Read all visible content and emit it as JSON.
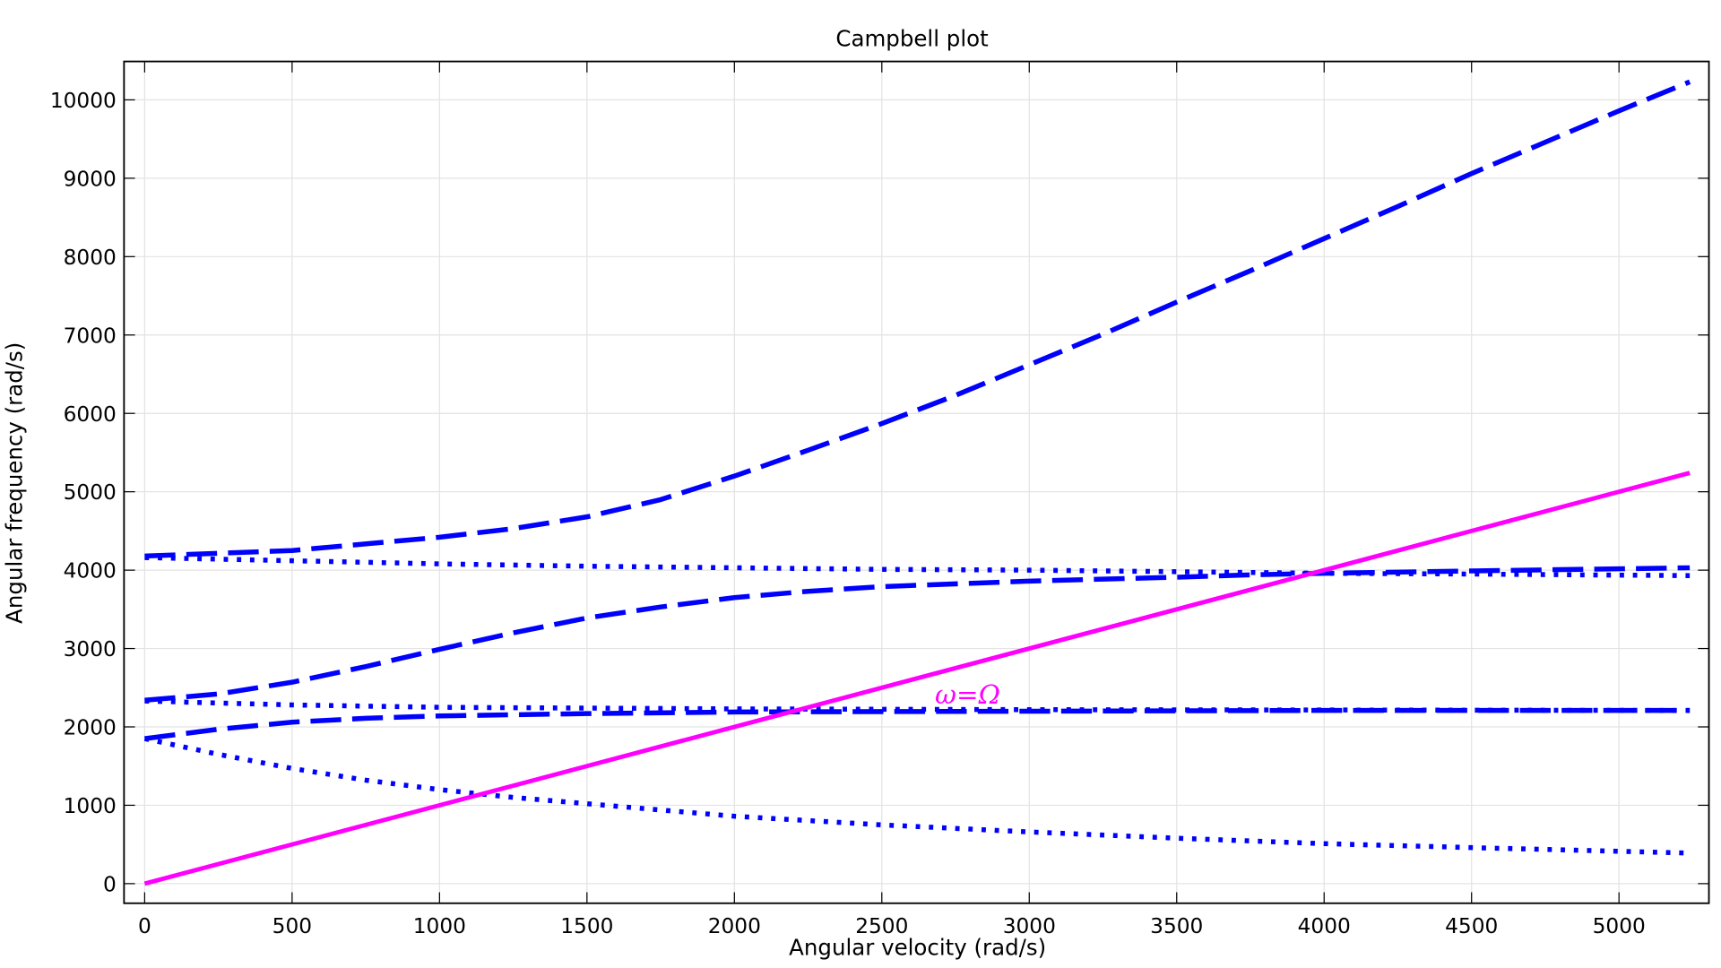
{
  "chart_data": {
    "type": "line",
    "title": "Campbell plot",
    "xlabel": "Angular velocity (rad/s)",
    "ylabel": "Angular frequency (rad/s)",
    "xlim": [
      -70,
      5305
    ],
    "ylim": [
      -250,
      10490
    ],
    "xticks": [
      0,
      500,
      1000,
      1500,
      2000,
      2500,
      3000,
      3500,
      4000,
      4500,
      5000
    ],
    "yticks": [
      0,
      1000,
      2000,
      3000,
      4000,
      5000,
      6000,
      7000,
      8000,
      9000,
      10000
    ],
    "grid": true,
    "annotation": {
      "text": "ω=Ω",
      "x": 2680,
      "y": 2300,
      "color": "#ff00ff"
    },
    "series": [
      {
        "style": "dashed",
        "color": "#0000ff",
        "x": [
          0,
          500,
          1000,
          1250,
          1500,
          1750,
          2000,
          2250,
          2500,
          2750,
          3000,
          3250,
          3500,
          3750,
          4000,
          4250,
          4500,
          4750,
          5000,
          5240
        ],
        "y": [
          4180,
          4250,
          4420,
          4530,
          4680,
          4900,
          5200,
          5530,
          5870,
          6230,
          6620,
          7010,
          7420,
          7820,
          8230,
          8640,
          9060,
          9460,
          9860,
          10230
        ]
      },
      {
        "style": "dotted",
        "color": "#0000ff",
        "x": [
          0,
          500,
          1000,
          1500,
          2000,
          2500,
          3000,
          3500,
          3750,
          4000,
          4500,
          5240
        ],
        "y": [
          4160,
          4120,
          4080,
          4050,
          4030,
          4010,
          4000,
          3980,
          3970,
          3960,
          3950,
          3930
        ]
      },
      {
        "style": "dashed",
        "color": "#0000ff",
        "x": [
          0,
          250,
          500,
          750,
          1000,
          1250,
          1500,
          1750,
          2000,
          2250,
          2500,
          3000,
          3500,
          3750,
          4000,
          4500,
          5240
        ],
        "y": [
          2340,
          2420,
          2570,
          2770,
          2990,
          3200,
          3390,
          3530,
          3650,
          3730,
          3790,
          3860,
          3910,
          3940,
          3960,
          3990,
          4030
        ]
      },
      {
        "style": "dotted",
        "color": "#0000ff",
        "x": [
          0,
          500,
          1000,
          1500,
          2000,
          3000,
          5240
        ],
        "y": [
          2330,
          2280,
          2250,
          2240,
          2230,
          2220,
          2210
        ]
      },
      {
        "style": "dashed",
        "color": "#0000ff",
        "x": [
          0,
          250,
          500,
          750,
          1000,
          1500,
          2000,
          3000,
          4000,
          5240
        ],
        "y": [
          1850,
          1970,
          2060,
          2110,
          2140,
          2170,
          2190,
          2200,
          2210,
          2210
        ]
      },
      {
        "style": "dotted",
        "color": "#0000ff",
        "x": [
          0,
          250,
          500,
          750,
          1000,
          1250,
          1500,
          1750,
          2000,
          2500,
          3000,
          3500,
          4000,
          4500,
          5240
        ],
        "y": [
          1850,
          1650,
          1470,
          1320,
          1200,
          1100,
          1020,
          940,
          860,
          750,
          660,
          580,
          510,
          460,
          390
        ]
      },
      {
        "style": "solid",
        "color": "#ff00ff",
        "x": [
          0,
          5240
        ],
        "y": [
          0,
          5240
        ]
      }
    ]
  }
}
